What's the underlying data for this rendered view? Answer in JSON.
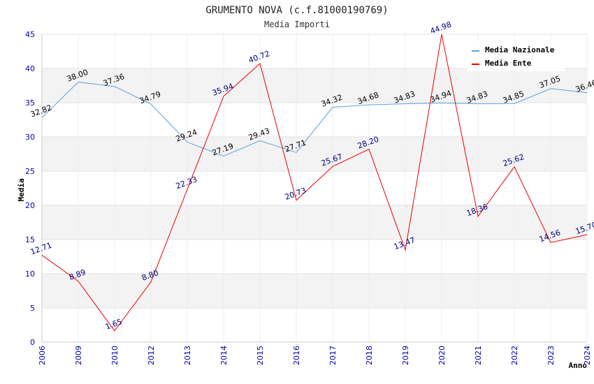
{
  "chart_data": {
    "type": "line",
    "title": "GRUMENTO NOVA (c.f.81000190769)",
    "subtitle": "Media Importi",
    "xlabel": "Anno",
    "ylabel": "Media",
    "ylim": [
      0,
      45
    ],
    "yticks": [
      "0",
      "5",
      "10",
      "15",
      "20",
      "25",
      "30",
      "35",
      "40",
      "45"
    ],
    "grid": "horizontal bands",
    "legend_position": "top-right",
    "categories": [
      "2006",
      "2009",
      "2010",
      "2012",
      "2013",
      "2014",
      "2015",
      "2016",
      "2017",
      "2018",
      "2019",
      "2020",
      "2021",
      "2022",
      "2023",
      "2024"
    ],
    "series": [
      {
        "name": "Media Nazionale",
        "color": "#5aa0e0",
        "values": [
          32.82,
          38.0,
          37.36,
          34.79,
          29.24,
          27.19,
          29.43,
          27.71,
          34.32,
          34.68,
          34.83,
          34.94,
          34.83,
          34.85,
          37.05,
          36.46
        ],
        "labels": [
          "32.82",
          "38.00",
          "37.36",
          "34.79",
          "29.24",
          "27.19",
          "29.43",
          "27.71",
          "34.32",
          "34.68",
          "34.83",
          "34.94",
          "34.83",
          "34.85",
          "37.05",
          "36.46"
        ]
      },
      {
        "name": "Media Ente",
        "color": "#ee0000",
        "values": [
          12.71,
          8.89,
          1.65,
          8.8,
          22.33,
          35.94,
          40.72,
          20.73,
          25.67,
          28.2,
          13.47,
          44.98,
          18.36,
          25.62,
          14.56,
          15.7
        ],
        "labels": [
          "12.71",
          "8.89",
          "1.65",
          "8.80",
          "22.33",
          "35.94",
          "40.72",
          "20.73",
          "25.67",
          "28.20",
          "13.47",
          "44.98",
          "18.36",
          "25.62",
          "14.56",
          "15.70"
        ]
      }
    ]
  }
}
